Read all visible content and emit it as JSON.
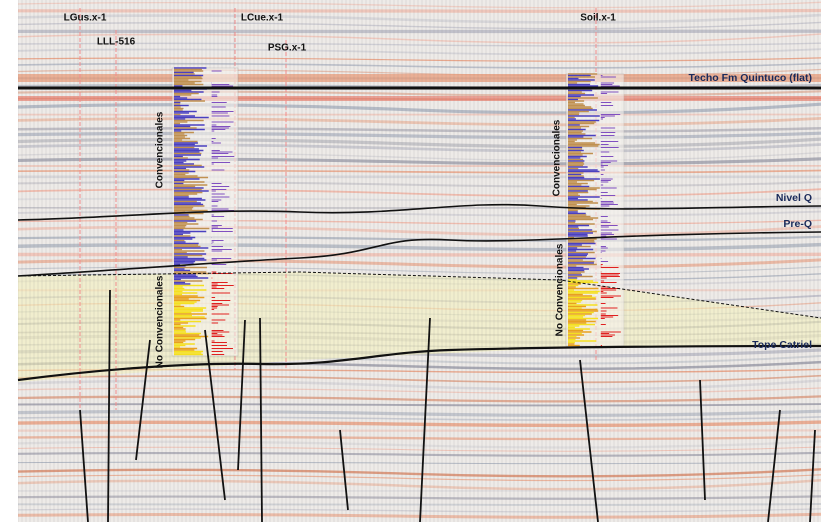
{
  "wells": [
    {
      "label": "LGus.x-1"
    },
    {
      "label": "LLL-516"
    },
    {
      "label": "LCue.x-1"
    },
    {
      "label": "PSG.x-1"
    },
    {
      "label": "Soil.x-1"
    }
  ],
  "horizons": [
    {
      "label": "Techo Fm Quintuco (flat)"
    },
    {
      "label": "Nivel Q"
    },
    {
      "label": "Pre-Q"
    },
    {
      "label": "Tope Catriel"
    }
  ],
  "zones": [
    {
      "label": "Convencionales"
    },
    {
      "label": "No Convencionales"
    },
    {
      "label": "Convencionales"
    },
    {
      "label": "No Convencionales"
    }
  ]
}
